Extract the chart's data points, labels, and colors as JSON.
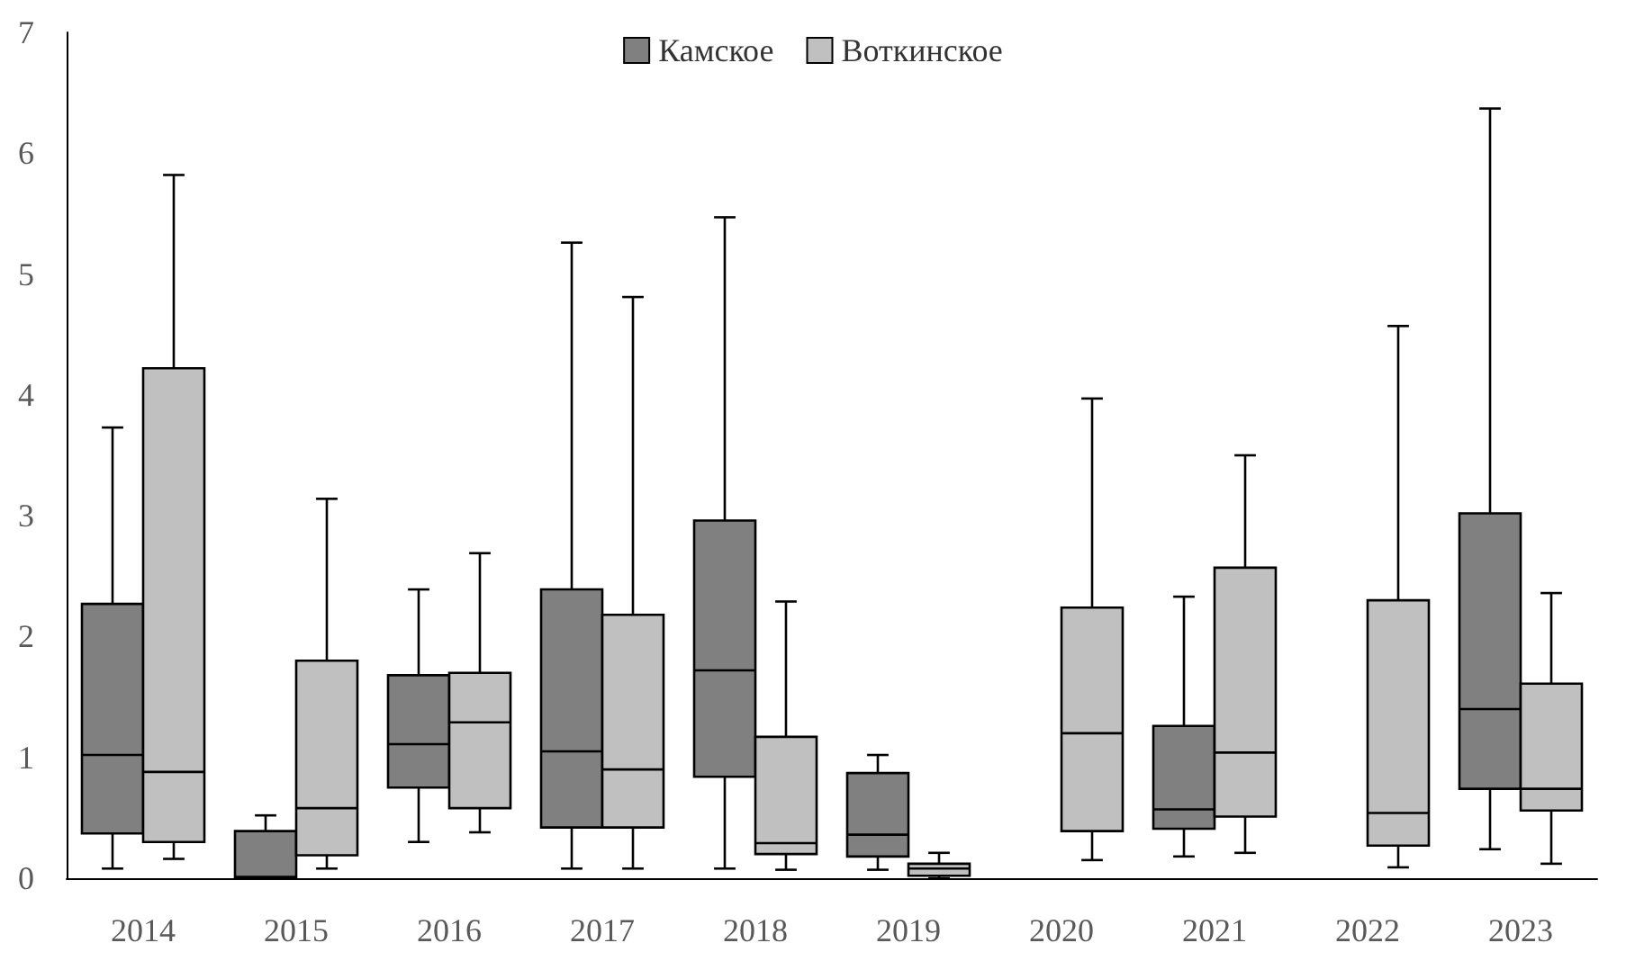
{
  "chart_data": {
    "type": "box",
    "categories": [
      "2014",
      "2015",
      "2016",
      "2017",
      "2018",
      "2019",
      "2020",
      "2021",
      "2022",
      "2023"
    ],
    "series": [
      {
        "name": "Камское",
        "color": "#808080",
        "boxes": [
          {
            "low": 0.08,
            "q1": 0.37,
            "median": 1.02,
            "q3": 2.27,
            "high": 3.73
          },
          {
            "low": 0,
            "q1": 0,
            "median": 0.01,
            "q3": 0.39,
            "high": 0.52
          },
          {
            "low": 0.3,
            "q1": 0.75,
            "median": 1.11,
            "q3": 1.68,
            "high": 2.39
          },
          {
            "low": 0.08,
            "q1": 0.42,
            "median": 1.05,
            "q3": 2.39,
            "high": 5.26
          },
          {
            "low": 0.08,
            "q1": 0.84,
            "median": 1.72,
            "q3": 2.96,
            "high": 5.47
          },
          {
            "low": 0.07,
            "q1": 0.18,
            "median": 0.36,
            "q3": 0.87,
            "high": 1.02
          },
          null,
          {
            "low": 0.18,
            "q1": 0.41,
            "median": 0.57,
            "q3": 1.26,
            "high": 2.33
          },
          null,
          {
            "low": 0.24,
            "q1": 0.74,
            "median": 1.4,
            "q3": 3.02,
            "high": 6.37
          }
        ]
      },
      {
        "name": "Воткинское",
        "color": "#c0c0c0",
        "boxes": [
          {
            "low": 0.16,
            "q1": 0.3,
            "median": 0.88,
            "q3": 4.22,
            "high": 5.82
          },
          {
            "low": 0.08,
            "q1": 0.19,
            "median": 0.58,
            "q3": 1.8,
            "high": 3.14
          },
          {
            "low": 0.38,
            "q1": 0.58,
            "median": 1.29,
            "q3": 1.7,
            "high": 2.69
          },
          {
            "low": 0.08,
            "q1": 0.42,
            "median": 0.9,
            "q3": 2.18,
            "high": 4.81
          },
          {
            "low": 0.07,
            "q1": 0.2,
            "median": 0.29,
            "q3": 1.17,
            "high": 2.29
          },
          {
            "low": 0,
            "q1": 0.02,
            "median": 0.08,
            "q3": 0.12,
            "high": 0.21
          },
          {
            "low": 0.15,
            "q1": 0.39,
            "median": 1.2,
            "q3": 2.24,
            "high": 3.97
          },
          {
            "low": 0.21,
            "q1": 0.51,
            "median": 1.04,
            "q3": 2.57,
            "high": 3.5
          },
          {
            "low": 0.09,
            "q1": 0.27,
            "median": 0.54,
            "q3": 2.3,
            "high": 4.57
          },
          {
            "low": 0.12,
            "q1": 0.56,
            "median": 0.74,
            "q3": 1.61,
            "high": 2.36
          }
        ]
      }
    ],
    "ylim": [
      0,
      7
    ],
    "yticks": [
      0,
      1,
      2,
      3,
      4,
      5,
      6,
      7
    ],
    "grid": false,
    "legend": "top"
  }
}
